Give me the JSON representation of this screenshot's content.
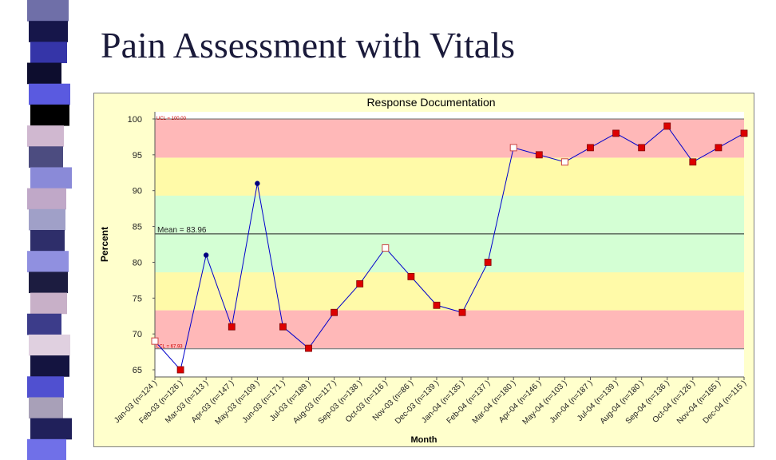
{
  "slide": {
    "title": "Pain Assessment with Vitals"
  },
  "deco": {
    "colors": [
      "#6f6fa8",
      "#16164a",
      "#3535a8",
      "#0d0d2e",
      "#5a5ae0",
      "#000000",
      "#d0b8d0",
      "#4c4c80",
      "#8a8ad8",
      "#c0a8c8",
      "#a0a0c8",
      "#2e2e6a",
      "#9090e0",
      "#1c1c40",
      "#c8b0c8",
      "#3c3c8a",
      "#e0d0e0",
      "#141440",
      "#5050d0",
      "#a8a0b8",
      "#20205a",
      "#7070e8"
    ]
  },
  "chart_data": {
    "type": "line",
    "title": "Response Documentation",
    "xlabel": "Month",
    "ylabel": "Percent",
    "ylim": [
      64,
      101
    ],
    "yticks": [
      65,
      70,
      75,
      80,
      85,
      90,
      95,
      100
    ],
    "categories": [
      "Jan-03 (n=124 )",
      "Feb-03 (n=126 )",
      "Mar-03 (n=113 )",
      "Apr-03 (n=147 )",
      "May-03 (n=109 )",
      "Jun-03 (n=171 )",
      "Jul-03 (n=189 )",
      "Aug-03 (n=117 )",
      "Sep-03 (n=138 )",
      "Oct-03 (n=116 )",
      "Nov-03 (n=86 )",
      "Dec-03 (n=139 )",
      "Jan-04 (n=135 )",
      "Feb-04 (n=137 )",
      "Mar-04 (n=180 )",
      "Apr-04 (n=146 )",
      "May-04 (n=103 )",
      "Jun-04 (n=187 )",
      "Jul-04 (n=139 )",
      "Aug-04 (n=180 )",
      "Sep-04 (n=136 )",
      "Oct-04 (n=126 )",
      "Nov-04 (n=165 )",
      "Dec-04 (n=115 )"
    ],
    "values": [
      69,
      65,
      81,
      71,
      91,
      71,
      68,
      73,
      77,
      82,
      78,
      74,
      73,
      80,
      96,
      95,
      94,
      96,
      98,
      96,
      99,
      94,
      96,
      98
    ],
    "markers": [
      "hollow",
      "red",
      "dot",
      "red",
      "dot",
      "red",
      "red",
      "red",
      "red",
      "hollow",
      "red",
      "red",
      "red",
      "red",
      "hollow",
      "red",
      "hollow",
      "red",
      "red",
      "red",
      "red",
      "red",
      "red",
      "red"
    ],
    "mean": {
      "value": 83.96,
      "label": "Mean = 83.96"
    },
    "ucl": {
      "value": 100,
      "label": "UCL = 100.00"
    },
    "lcl": {
      "value": 67.93,
      "label": "LCL = 67.93"
    },
    "zones": [
      {
        "from": 68,
        "to": 73.3,
        "color": "#ffb8b8"
      },
      {
        "from": 73.3,
        "to": 78.6,
        "color": "#fffaa8"
      },
      {
        "from": 78.6,
        "to": 89.3,
        "color": "#d4ffd4"
      },
      {
        "from": 89.3,
        "to": 94.6,
        "color": "#fffaa8"
      },
      {
        "from": 94.6,
        "to": 100,
        "color": "#ffb8b8"
      }
    ],
    "colors": {
      "background": "#ffffcc",
      "line": "#0000cc",
      "marker": "#dd0000",
      "marker_stroke": "#800000",
      "dot": "#000080",
      "hollow_fill": "#ffffff",
      "hollow_stroke": "#cc4444",
      "limit_text": "#cc0000",
      "border": "#808080"
    }
  }
}
